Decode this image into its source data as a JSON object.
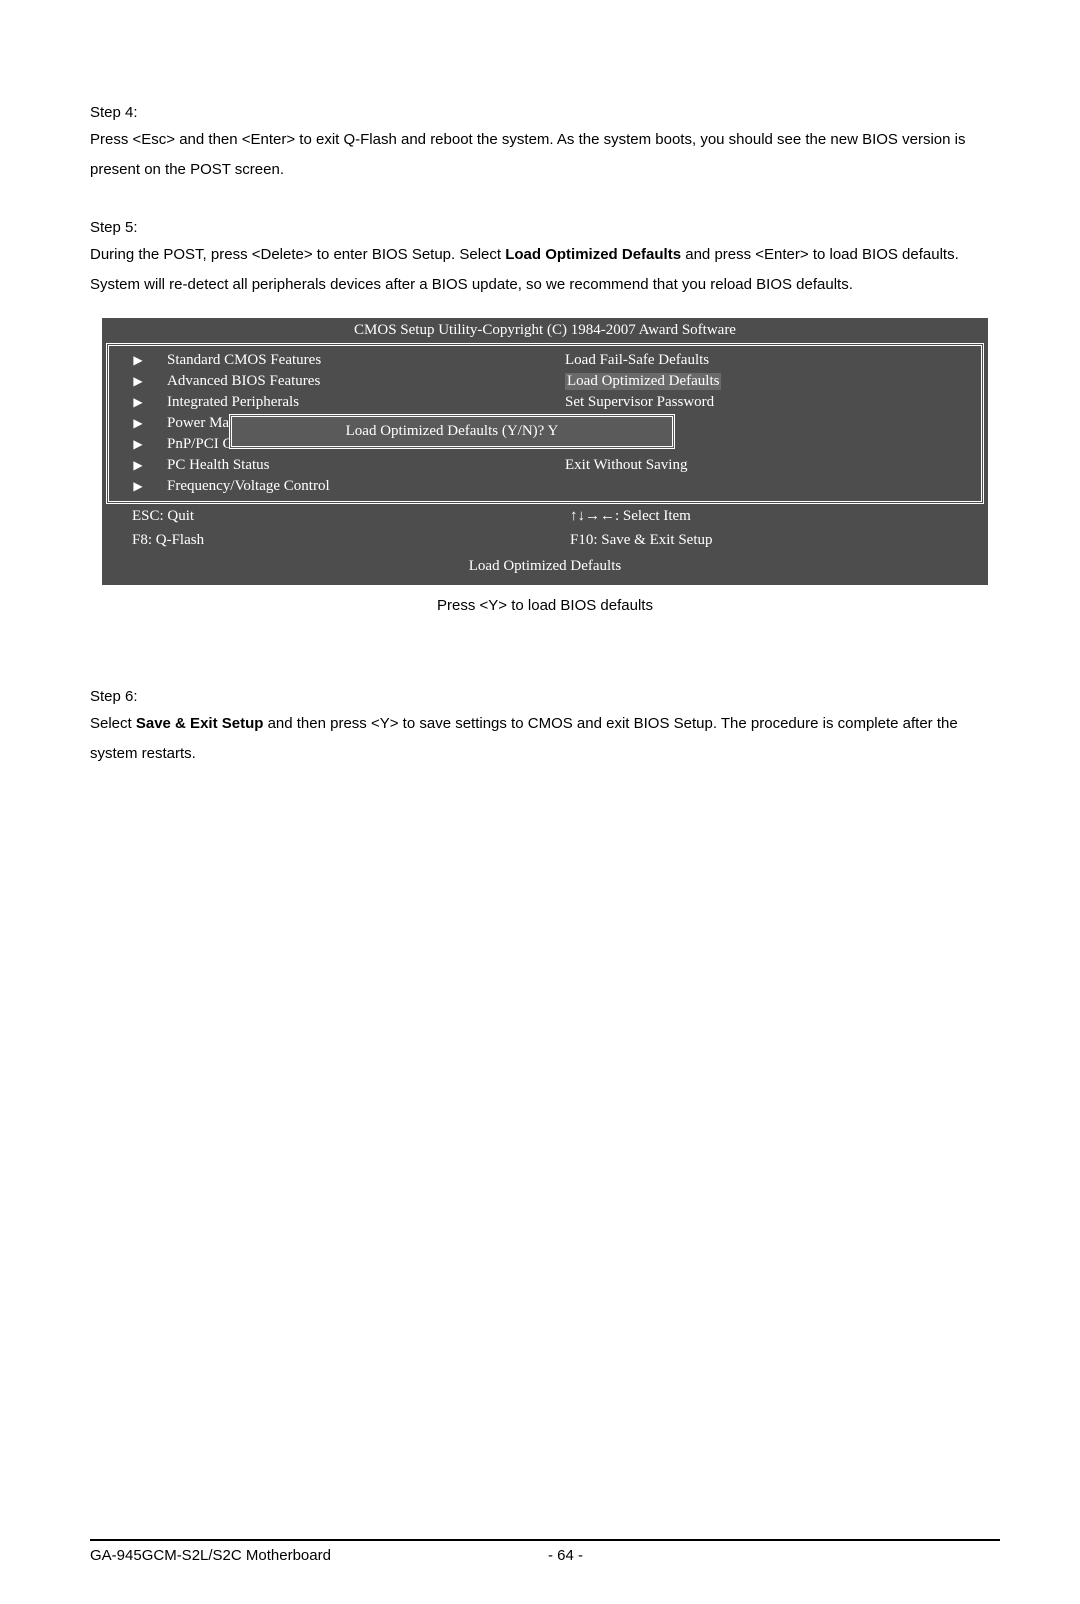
{
  "step4": {
    "label": "Step 4:",
    "text": "Press <Esc> and then <Enter> to exit Q-Flash and reboot the system. As the system boots, you should see the new BIOS version is present on the POST screen."
  },
  "step5": {
    "label": "Step 5:",
    "text_before": "During the POST, press <Delete> to enter BIOS Setup. Select ",
    "bold": "Load Optimized Defaults",
    "text_after": " and press <Enter> to load BIOS defaults. System will re-detect all peripherals devices after a BIOS update, so we recommend that you reload BIOS defaults."
  },
  "bios": {
    "title": "CMOS Setup Utility-Copyright (C) 1984-2007 Award Software",
    "left_items": [
      "Standard CMOS Features",
      "Advanced BIOS Features",
      "Integrated Peripherals",
      "Power Ma",
      "PnP/PCI C",
      "PC Health Status",
      "Frequency/Voltage Control"
    ],
    "right_items": [
      "Load Fail-Safe Defaults",
      "Load Optimized Defaults",
      "Set Supervisor Password",
      "",
      "",
      "Exit Without Saving"
    ],
    "highlighted_right_index": 1,
    "dialog": "Load Optimized Defaults (Y/N)? Y",
    "legend": {
      "esc": "ESC: Quit",
      "select": "↑↓→←: Select Item",
      "f8": "F8: Q-Flash",
      "f10": "F10: Save & Exit Setup"
    },
    "footer": "Load Optimized Defaults"
  },
  "caption": "Press <Y> to load BIOS defaults",
  "step6": {
    "label": "Step 6:",
    "text_before": "Select ",
    "bold": "Save & Exit Setup",
    "text_after": " and then press <Y> to save settings to CMOS and exit BIOS Setup. The procedure is complete after the system restarts."
  },
  "page_footer": {
    "product": "GA-945GCM-S2L/S2C Motherboard",
    "page": "- 64 -"
  },
  "style": {
    "bios_bg": "#4d4d4d",
    "bios_text": "#ffffff",
    "highlight_bg": "#6a6a6a"
  }
}
